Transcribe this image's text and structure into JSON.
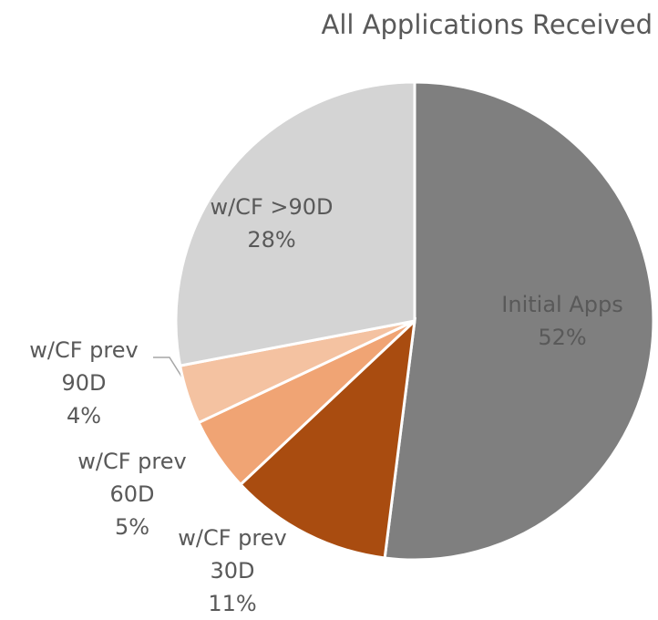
{
  "chart_data": {
    "type": "pie",
    "title": "All Applications Received",
    "categories": [
      "Initial Apps",
      "w/CF prev 30D",
      "w/CF prev 60D",
      "w/CF prev 90D",
      "w/CF >90D"
    ],
    "values": [
      52,
      11,
      5,
      4,
      28
    ],
    "value_labels": [
      "52%",
      "11%",
      "5%",
      "4%",
      "28%"
    ],
    "colors": [
      "#7f7f7f",
      "#a94c10",
      "#f0a474",
      "#f4c2a1",
      "#d4d4d4"
    ]
  }
}
